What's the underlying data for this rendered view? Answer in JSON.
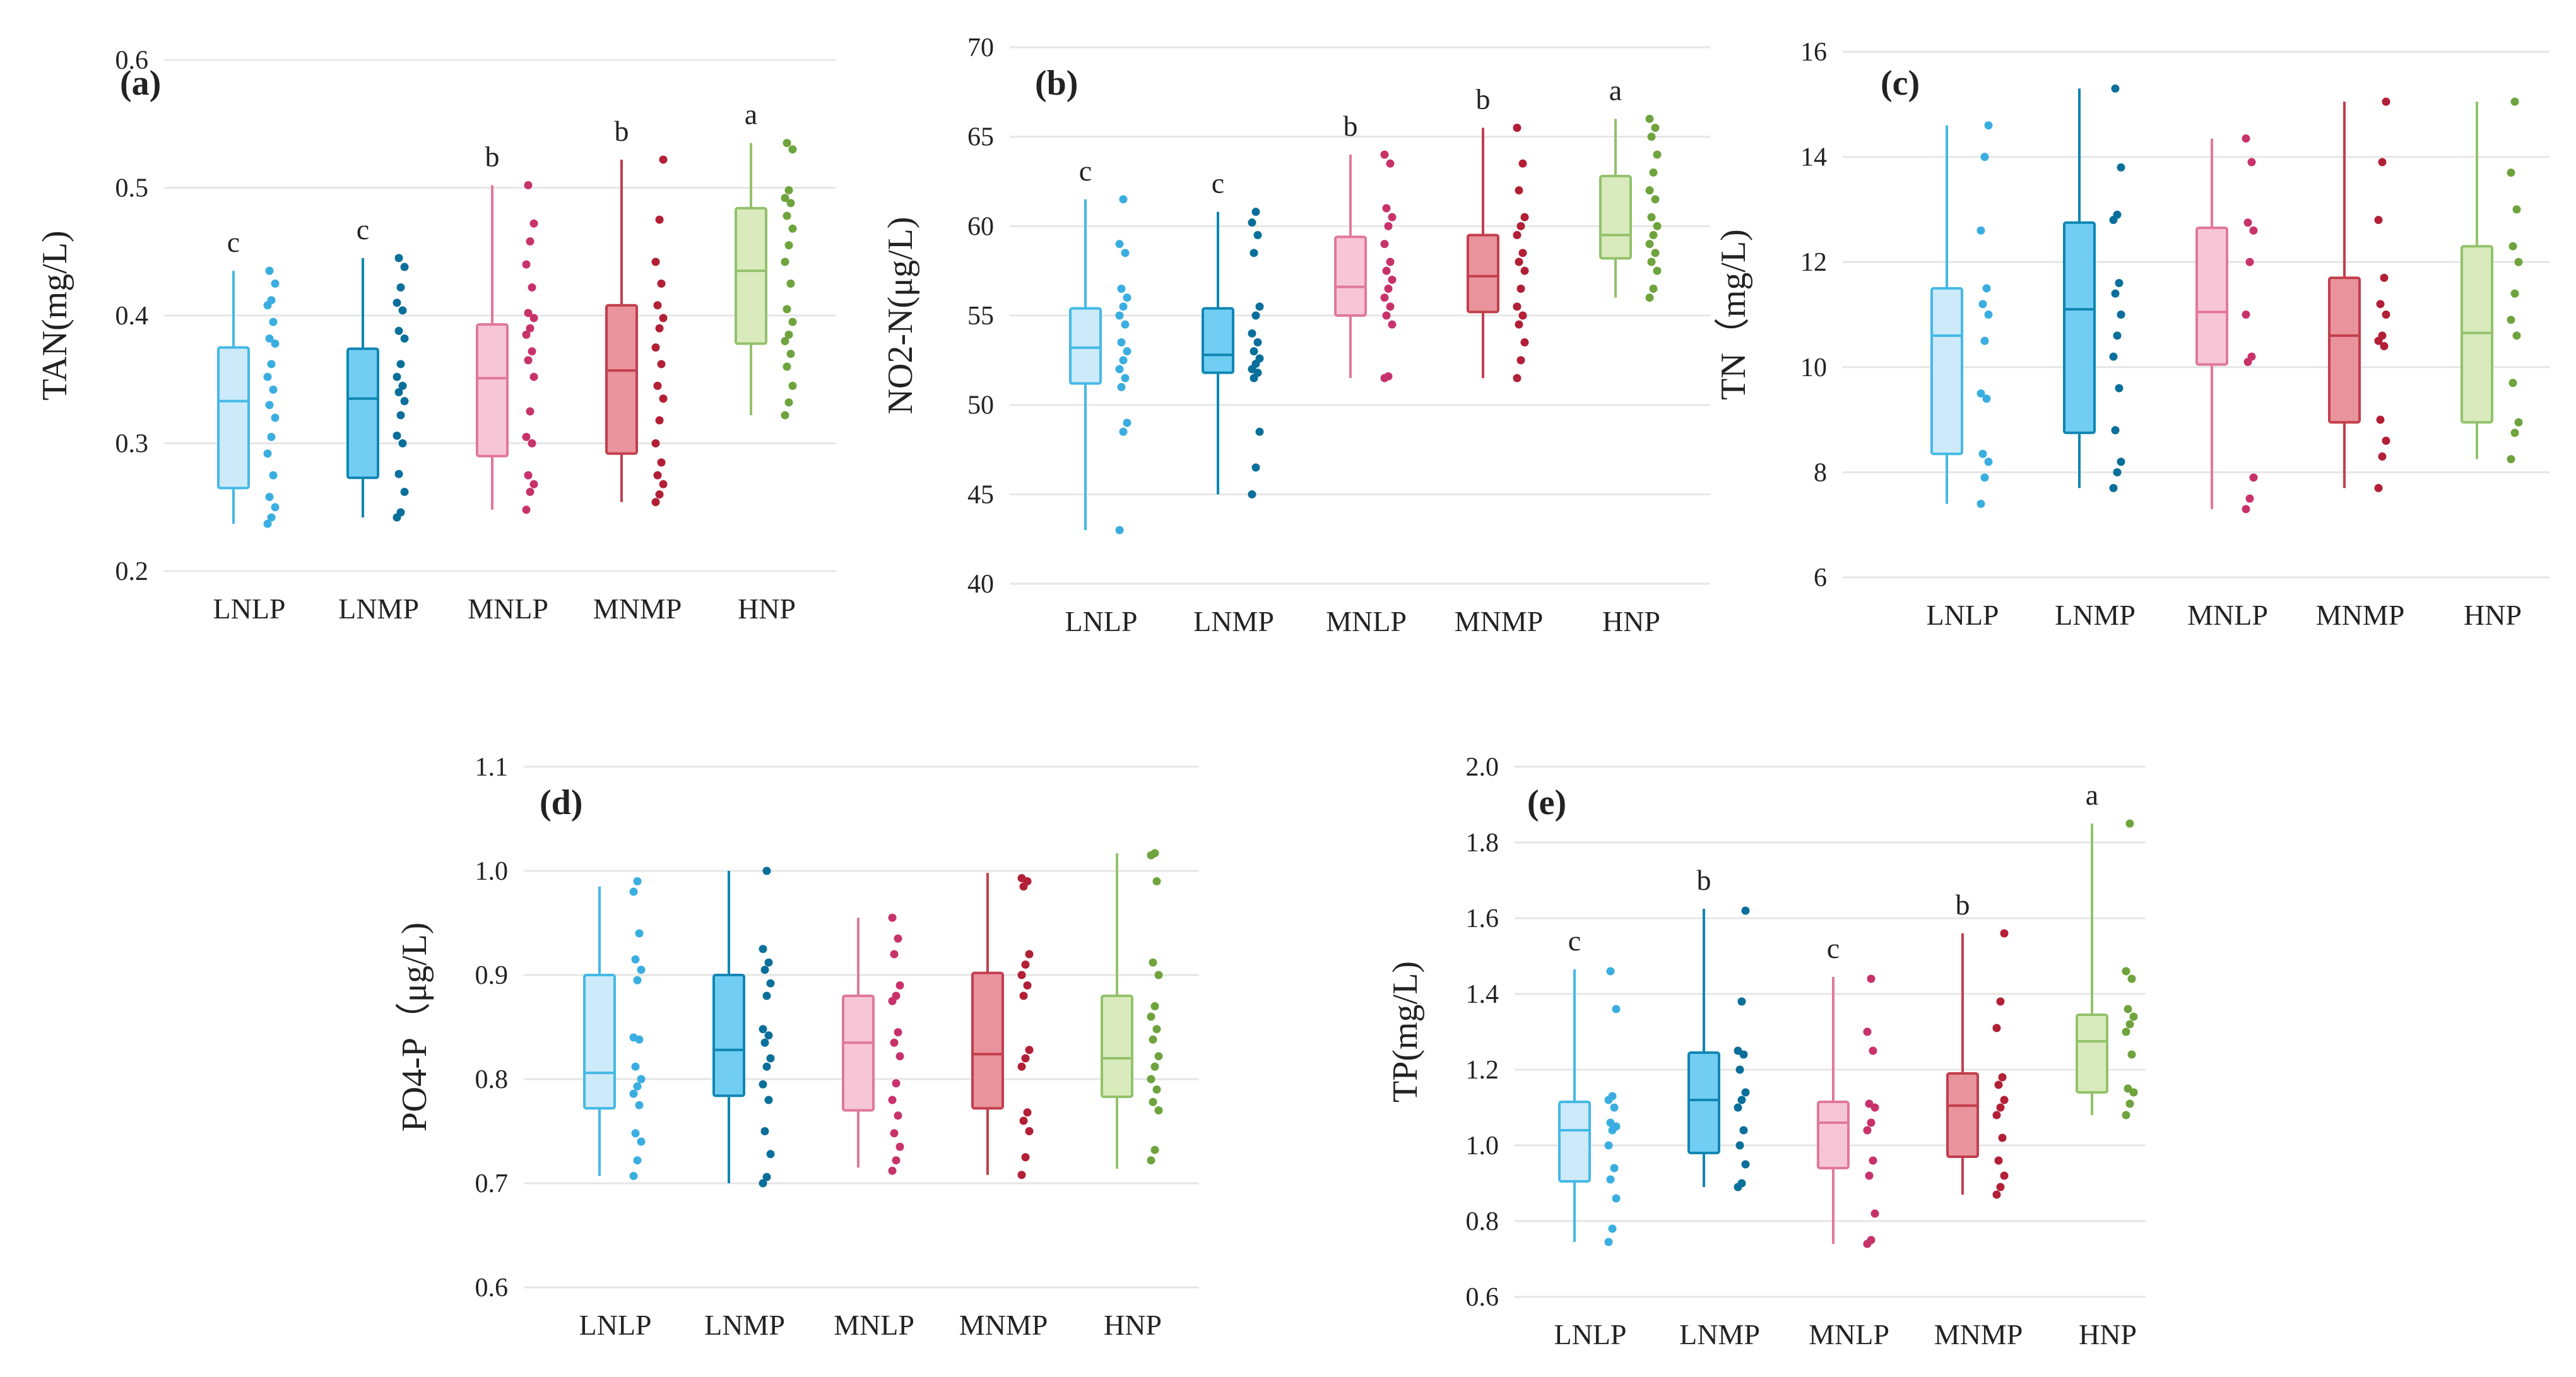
{
  "chart_data": [
    {
      "id": "a",
      "panel_label": "(a)",
      "type": "box",
      "ylabel": "TAN(mg/L)",
      "ylim": [
        0.2,
        0.6
      ],
      "yticks": [
        0.2,
        0.3,
        0.4,
        0.5,
        0.6
      ],
      "tick_labels": [
        "0.2",
        "0.3",
        "0.4",
        "0.5",
        "0.6"
      ],
      "categories": [
        "LNLP",
        "LNMP",
        "MNLP",
        "MNMP",
        "HNP"
      ],
      "letters": [
        "c",
        "c",
        "b",
        "b",
        "a"
      ],
      "boxes": [
        {
          "min": 0.237,
          "q1": 0.265,
          "median": 0.333,
          "q3": 0.375,
          "max": 0.435
        },
        {
          "min": 0.242,
          "q1": 0.273,
          "median": 0.335,
          "q3": 0.374,
          "max": 0.445
        },
        {
          "min": 0.248,
          "q1": 0.29,
          "median": 0.351,
          "q3": 0.393,
          "max": 0.502
        },
        {
          "min": 0.254,
          "q1": 0.292,
          "median": 0.357,
          "q3": 0.408,
          "max": 0.522
        },
        {
          "min": 0.322,
          "q1": 0.378,
          "median": 0.435,
          "q3": 0.484,
          "max": 0.535
        }
      ],
      "points": [
        [
          0.237,
          0.242,
          0.25,
          0.258,
          0.275,
          0.292,
          0.305,
          0.32,
          0.33,
          0.342,
          0.352,
          0.362,
          0.378,
          0.382,
          0.395,
          0.408,
          0.412,
          0.425,
          0.435
        ],
        [
          0.242,
          0.246,
          0.262,
          0.276,
          0.3,
          0.306,
          0.322,
          0.333,
          0.34,
          0.345,
          0.352,
          0.362,
          0.382,
          0.388,
          0.404,
          0.41,
          0.422,
          0.438,
          0.445
        ],
        [
          0.248,
          0.262,
          0.268,
          0.275,
          0.3,
          0.305,
          0.325,
          0.352,
          0.365,
          0.372,
          0.385,
          0.39,
          0.398,
          0.402,
          0.422,
          0.44,
          0.458,
          0.472,
          0.502
        ],
        [
          0.254,
          0.26,
          0.268,
          0.275,
          0.285,
          0.3,
          0.318,
          0.335,
          0.345,
          0.362,
          0.375,
          0.39,
          0.398,
          0.408,
          0.425,
          0.442,
          0.475,
          0.522
        ],
        [
          0.322,
          0.332,
          0.345,
          0.36,
          0.37,
          0.38,
          0.385,
          0.395,
          0.405,
          0.425,
          0.442,
          0.455,
          0.468,
          0.478,
          0.488,
          0.492,
          0.498,
          0.53,
          0.535
        ]
      ]
    },
    {
      "id": "b",
      "panel_label": "(b)",
      "type": "box",
      "ylabel": "NO2-N(μg/L)",
      "ylim": [
        40,
        70
      ],
      "yticks": [
        40,
        45,
        50,
        55,
        60,
        65,
        70
      ],
      "tick_labels": [
        "40",
        "45",
        "50",
        "55",
        "60",
        "65",
        "70"
      ],
      "categories": [
        "LNLP",
        "LNMP",
        "MNLP",
        "MNMP",
        "HNP"
      ],
      "letters": [
        "c",
        "c",
        "b",
        "b",
        "a"
      ],
      "boxes": [
        {
          "min": 43.0,
          "q1": 51.2,
          "median": 53.2,
          "q3": 55.4,
          "max": 61.5
        },
        {
          "min": 45.0,
          "q1": 51.8,
          "median": 52.8,
          "q3": 55.4,
          "max": 60.8
        },
        {
          "min": 51.5,
          "q1": 55.0,
          "median": 56.6,
          "q3": 59.4,
          "max": 64.0
        },
        {
          "min": 51.5,
          "q1": 55.2,
          "median": 57.2,
          "q3": 59.5,
          "max": 65.5
        },
        {
          "min": 56.0,
          "q1": 58.2,
          "median": 59.5,
          "q3": 62.8,
          "max": 66.0
        }
      ],
      "points": [
        [
          43.0,
          48.5,
          49.0,
          51.0,
          51.5,
          52.0,
          52.5,
          53.0,
          53.5,
          54.5,
          55.0,
          55.5,
          56.0,
          56.5,
          58.5,
          59.0,
          61.5
        ],
        [
          45.0,
          46.5,
          48.5,
          51.5,
          51.8,
          52.0,
          52.3,
          52.6,
          53.0,
          53.5,
          54.0,
          55.0,
          55.5,
          58.5,
          59.5,
          60.2,
          60.8
        ],
        [
          51.5,
          51.6,
          54.5,
          55.0,
          55.5,
          56.0,
          56.5,
          57.0,
          57.5,
          58.0,
          59.0,
          60.0,
          60.5,
          61.0,
          63.5,
          64.0
        ],
        [
          51.5,
          52.5,
          53.5,
          54.5,
          55.0,
          55.5,
          56.5,
          57.5,
          58.0,
          58.5,
          59.5,
          60.0,
          60.5,
          62.0,
          63.5,
          65.5
        ],
        [
          56.0,
          56.5,
          57.5,
          58.0,
          58.5,
          59.0,
          59.5,
          60.0,
          60.5,
          61.5,
          62.0,
          63.0,
          64.0,
          65.0,
          65.5,
          66.0
        ]
      ]
    },
    {
      "id": "c",
      "panel_label": "(c)",
      "type": "box",
      "ylabel": "TN（mg/L)",
      "ylim": [
        6,
        16
      ],
      "yticks": [
        6,
        8,
        10,
        12,
        14,
        16
      ],
      "tick_labels": [
        "6",
        "8",
        "10",
        "12",
        "14",
        "16"
      ],
      "categories": [
        "LNLP",
        "LNMP",
        "MNLP",
        "MNMP",
        "HNP"
      ],
      "letters": [
        "",
        "",
        "",
        "",
        ""
      ],
      "boxes": [
        {
          "min": 7.4,
          "q1": 8.35,
          "median": 10.6,
          "q3": 11.5,
          "max": 14.6
        },
        {
          "min": 7.7,
          "q1": 8.75,
          "median": 11.1,
          "q3": 12.75,
          "max": 15.3
        },
        {
          "min": 7.3,
          "q1": 10.05,
          "median": 11.05,
          "q3": 12.65,
          "max": 14.35
        },
        {
          "min": 7.7,
          "q1": 8.95,
          "median": 10.6,
          "q3": 11.7,
          "max": 15.05
        },
        {
          "min": 8.25,
          "q1": 8.95,
          "median": 10.65,
          "q3": 12.3,
          "max": 15.05
        }
      ],
      "points": [
        [
          7.4,
          7.9,
          8.2,
          8.35,
          9.4,
          9.5,
          10.5,
          11.0,
          11.2,
          11.5,
          12.6,
          14.0,
          14.6
        ],
        [
          7.7,
          8.0,
          8.2,
          8.8,
          9.6,
          10.2,
          10.6,
          11.0,
          11.4,
          11.6,
          12.8,
          12.9,
          13.8,
          15.3
        ],
        [
          7.3,
          7.5,
          7.9,
          10.1,
          10.2,
          11.0,
          12.0,
          12.6,
          12.75,
          13.9,
          14.35
        ],
        [
          7.7,
          8.3,
          8.6,
          9.0,
          10.4,
          10.5,
          10.6,
          11.0,
          11.2,
          11.7,
          12.8,
          13.9,
          15.05
        ],
        [
          8.25,
          8.75,
          8.95,
          9.7,
          10.6,
          10.9,
          11.4,
          12.0,
          12.3,
          13.0,
          13.7,
          15.05
        ]
      ]
    },
    {
      "id": "d",
      "panel_label": "(d)",
      "type": "box",
      "ylabel": "PO4-P（μg/L)",
      "ylim": [
        0.6,
        1.1
      ],
      "yticks": [
        0.6,
        0.7,
        0.8,
        0.9,
        1.0,
        1.1
      ],
      "tick_labels": [
        "0.6",
        "0.7",
        "0.8",
        "0.9",
        "1.0",
        "1.1"
      ],
      "categories": [
        "LNLP",
        "LNMP",
        "MNLP",
        "MNMP",
        "HNP"
      ],
      "letters": [
        "",
        "",
        "",
        "",
        ""
      ],
      "boxes": [
        {
          "min": 0.707,
          "q1": 0.772,
          "median": 0.806,
          "q3": 0.9,
          "max": 0.985
        },
        {
          "min": 0.7,
          "q1": 0.784,
          "median": 0.828,
          "q3": 0.9,
          "max": 1.0
        },
        {
          "min": 0.715,
          "q1": 0.77,
          "median": 0.835,
          "q3": 0.88,
          "max": 0.955
        },
        {
          "min": 0.708,
          "q1": 0.772,
          "median": 0.824,
          "q3": 0.902,
          "max": 0.998
        },
        {
          "min": 0.714,
          "q1": 0.783,
          "median": 0.82,
          "q3": 0.88,
          "max": 1.017
        }
      ],
      "points": [
        [
          0.707,
          0.722,
          0.74,
          0.748,
          0.775,
          0.786,
          0.793,
          0.8,
          0.812,
          0.838,
          0.84,
          0.895,
          0.905,
          0.915,
          0.94,
          0.98,
          0.99
        ],
        [
          0.7,
          0.706,
          0.728,
          0.75,
          0.78,
          0.795,
          0.812,
          0.82,
          0.835,
          0.842,
          0.848,
          0.88,
          0.892,
          0.905,
          0.912,
          0.925,
          1.0
        ],
        [
          0.712,
          0.722,
          0.735,
          0.748,
          0.765,
          0.78,
          0.796,
          0.822,
          0.835,
          0.845,
          0.875,
          0.88,
          0.89,
          0.92,
          0.935,
          0.955
        ],
        [
          0.708,
          0.725,
          0.75,
          0.76,
          0.768,
          0.812,
          0.82,
          0.828,
          0.88,
          0.89,
          0.9,
          0.91,
          0.92,
          0.985,
          0.99,
          0.993
        ],
        [
          0.722,
          0.732,
          0.77,
          0.778,
          0.79,
          0.8,
          0.812,
          0.822,
          0.838,
          0.848,
          0.86,
          0.87,
          0.9,
          0.912,
          0.99,
          1.015,
          1.017
        ]
      ]
    },
    {
      "id": "e",
      "panel_label": "(e)",
      "type": "box",
      "ylabel": "TP(mg/L)",
      "ylim": [
        0.6,
        2.0
      ],
      "yticks": [
        0.6,
        0.8,
        1.0,
        1.2,
        1.4,
        1.6,
        1.8,
        2.0
      ],
      "tick_labels": [
        "0.6",
        "0.8",
        "1.0",
        "1.2",
        "1.4",
        "1.6",
        "1.8",
        "2.0"
      ],
      "categories": [
        "LNLP",
        "LNMP",
        "MNLP",
        "MNMP",
        "HNP"
      ],
      "letters": [
        "c",
        "b",
        "c",
        "b",
        "a"
      ],
      "boxes": [
        {
          "min": 0.745,
          "q1": 0.905,
          "median": 1.04,
          "q3": 1.115,
          "max": 1.465
        },
        {
          "min": 0.89,
          "q1": 0.98,
          "median": 1.12,
          "q3": 1.245,
          "max": 1.625
        },
        {
          "min": 0.74,
          "q1": 0.94,
          "median": 1.06,
          "q3": 1.115,
          "max": 1.445
        },
        {
          "min": 0.87,
          "q1": 0.97,
          "median": 1.105,
          "q3": 1.19,
          "max": 1.56
        },
        {
          "min": 1.08,
          "q1": 1.14,
          "median": 1.275,
          "q3": 1.345,
          "max": 1.85
        }
      ],
      "points": [
        [
          0.745,
          0.78,
          0.86,
          0.91,
          0.94,
          1.0,
          1.04,
          1.05,
          1.06,
          1.1,
          1.12,
          1.13,
          1.36,
          1.46
        ],
        [
          0.89,
          0.9,
          0.95,
          1.0,
          1.04,
          1.1,
          1.12,
          1.14,
          1.2,
          1.24,
          1.25,
          1.38,
          1.62
        ],
        [
          0.74,
          0.75,
          0.82,
          0.92,
          0.96,
          1.04,
          1.06,
          1.1,
          1.11,
          1.25,
          1.3,
          1.44
        ],
        [
          0.87,
          0.89,
          0.92,
          0.96,
          1.02,
          1.08,
          1.1,
          1.12,
          1.16,
          1.18,
          1.31,
          1.38,
          1.56
        ],
        [
          1.08,
          1.11,
          1.14,
          1.15,
          1.24,
          1.3,
          1.32,
          1.34,
          1.36,
          1.44,
          1.46,
          1.85
        ]
      ]
    }
  ]
}
